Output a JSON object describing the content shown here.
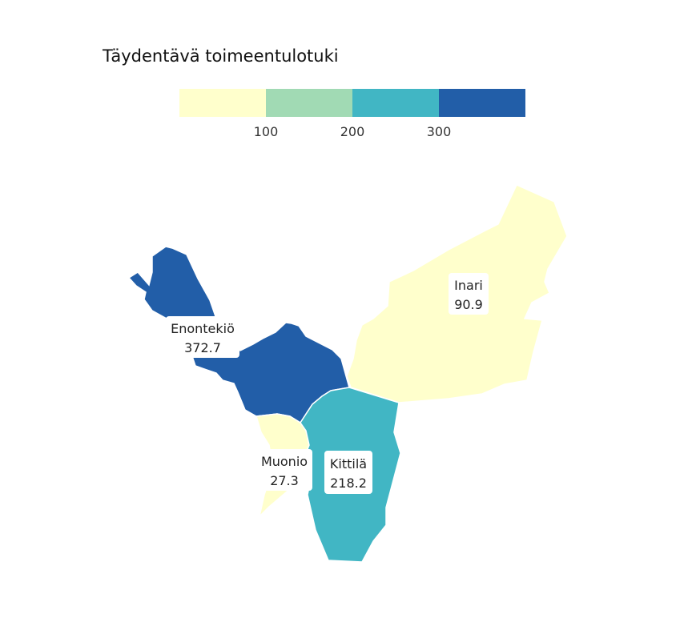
{
  "title": "Täydentävä toimeentulotuki",
  "legend": {
    "colors": [
      "#ffffcc",
      "#a1dab4",
      "#41b6c4",
      "#225ea8"
    ],
    "ticks": [
      "100",
      "200",
      "300"
    ]
  },
  "regions": [
    {
      "name": "Enontekiö",
      "value": "372.7",
      "color": "#225ea8"
    },
    {
      "name": "Inari",
      "value": "90.9",
      "color": "#ffffcc"
    },
    {
      "name": "Muonio",
      "value": "27.3",
      "color": "#ffffcc"
    },
    {
      "name": "Kittilä",
      "value": "218.2",
      "color": "#41b6c4"
    }
  ]
}
